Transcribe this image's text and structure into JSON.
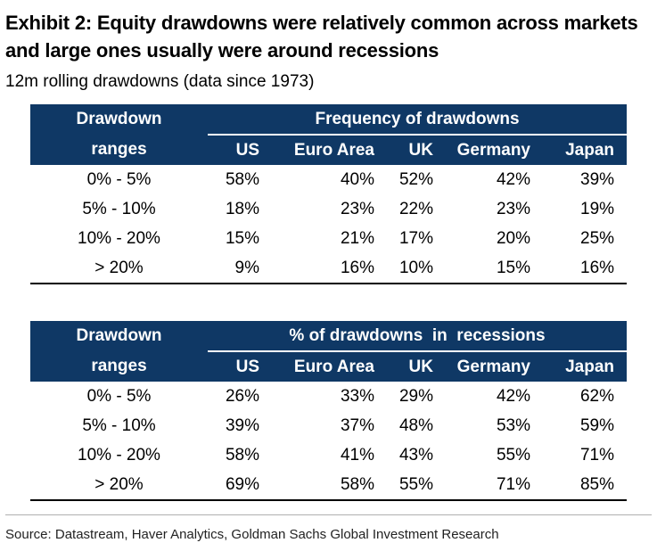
{
  "title": "Exhibit 2: Equity drawdowns were relatively common across markets and large ones usually were around recessions",
  "subtitle": "12m rolling drawdowns (data since 1973)",
  "source": "Source: Datastream, Haver Analytics, Goldman Sachs Global Investment Research",
  "chart_data": [
    {
      "type": "table",
      "title": "Frequency of drawdowns",
      "row_header": [
        "Drawdown",
        "ranges"
      ],
      "columns": [
        "US",
        "Euro Area",
        "UK",
        "Germany",
        "Japan"
      ],
      "rows": [
        {
          "range": "0% - 5%",
          "values": [
            "58%",
            "40%",
            "52%",
            "42%",
            "39%"
          ]
        },
        {
          "range": "5% - 10%",
          "values": [
            "18%",
            "23%",
            "22%",
            "23%",
            "19%"
          ]
        },
        {
          "range": "10% - 20%",
          "values": [
            "15%",
            "21%",
            "17%",
            "20%",
            "25%"
          ]
        },
        {
          "range": "> 20%",
          "values": [
            "9%",
            "16%",
            "10%",
            "15%",
            "16%"
          ]
        }
      ]
    },
    {
      "type": "table",
      "title": "% of drawdowns  in  recessions",
      "row_header": [
        "Drawdown",
        "ranges"
      ],
      "columns": [
        "US",
        "Euro Area",
        "UK",
        "Germany",
        "Japan"
      ],
      "rows": [
        {
          "range": "0% - 5%",
          "values": [
            "26%",
            "33%",
            "29%",
            "42%",
            "62%"
          ]
        },
        {
          "range": "5% - 10%",
          "values": [
            "39%",
            "37%",
            "48%",
            "53%",
            "59%"
          ]
        },
        {
          "range": "10% - 20%",
          "values": [
            "58%",
            "41%",
            "43%",
            "55%",
            "71%"
          ]
        },
        {
          "range": "> 20%",
          "values": [
            "69%",
            "58%",
            "55%",
            "71%",
            "85%"
          ]
        }
      ]
    }
  ],
  "colors": {
    "header_bg": "#0f3865",
    "header_text": "#ffffff"
  }
}
